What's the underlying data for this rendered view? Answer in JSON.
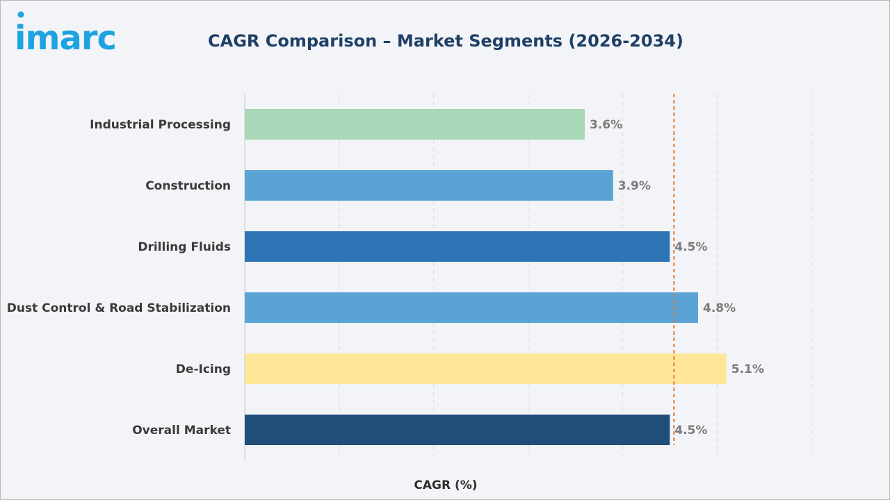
{
  "logo_text": "imarc",
  "chart_data": {
    "type": "bar",
    "orientation": "horizontal",
    "title": "CAGR Comparison – Market Segments (2026-2034)",
    "xlabel": "CAGR (%)",
    "ylabel": "",
    "categories": [
      "Industrial Processing",
      "Construction",
      "Drilling Fluids",
      "Dust Control & Road Stabilization",
      "De-Icing",
      "Overall Market"
    ],
    "values": [
      3.6,
      3.9,
      4.5,
      4.8,
      5.1,
      4.5
    ],
    "value_labels": [
      "3.6%",
      "3.9%",
      "4.5%",
      "4.8%",
      "5.1%",
      "4.5%"
    ],
    "bar_colors": [
      "#a9d8b8",
      "#5ba3d5",
      "#2e75b6",
      "#5ba3d5",
      "#ffe699",
      "#1f4e79"
    ],
    "xlim": [
      0,
      6
    ],
    "reference_line": {
      "value": 4.5,
      "color": "#e07b39",
      "style": "dashed"
    },
    "grid": true,
    "legend": "none"
  }
}
